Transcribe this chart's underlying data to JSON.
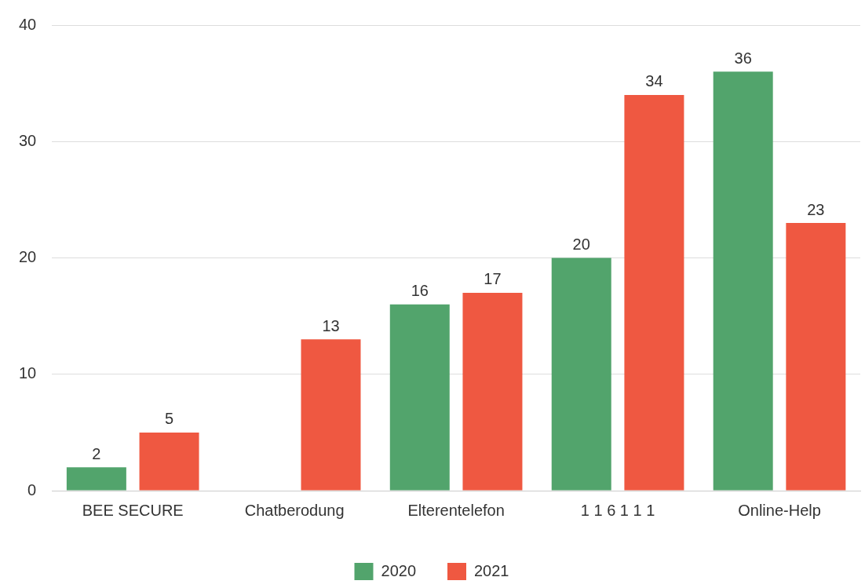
{
  "chart_data": {
    "type": "bar",
    "categories": [
      "BEE SECURE",
      "Chatberodung",
      "Elterentelefon",
      "1 1 6 1 1 1",
      "Online-Help"
    ],
    "series": [
      {
        "name": "2020",
        "color": "#52a46c",
        "values": [
          2,
          null,
          16,
          20,
          36
        ]
      },
      {
        "name": "2021",
        "color": "#ef5841",
        "values": [
          5,
          13,
          17,
          34,
          23
        ]
      }
    ],
    "ylim": [
      0,
      40
    ],
    "yticks": [
      0,
      10,
      20,
      30,
      40
    ],
    "grid": "y",
    "legend": "bottom",
    "data_labels": true
  }
}
